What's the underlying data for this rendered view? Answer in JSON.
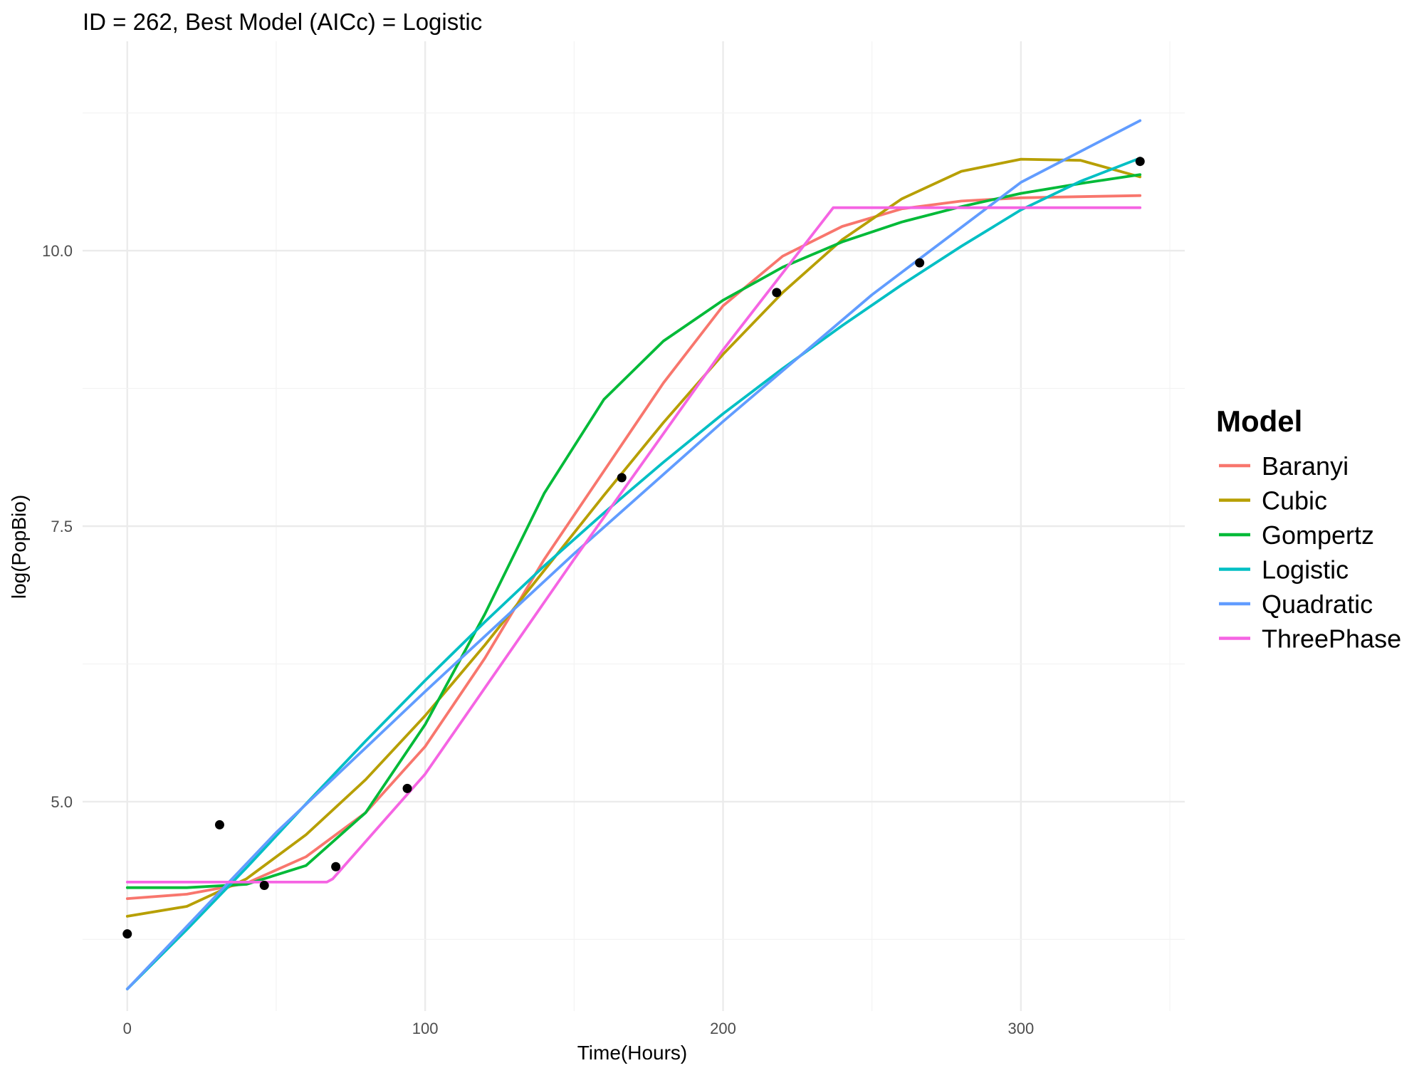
{
  "chart_data": {
    "type": "line",
    "title": "ID = 262, Best Model (AICc) = Logistic",
    "xlabel": "Time(Hours)",
    "ylabel": "log(PopBio)",
    "xlim": [
      -15,
      355
    ],
    "ylim": [
      3.1,
      11.9
    ],
    "x_ticks": [
      0,
      100,
      200,
      300
    ],
    "x_tick_labels": [
      "0",
      "100",
      "200",
      "300"
    ],
    "y_ticks": [
      5.0,
      7.5,
      10.0
    ],
    "y_tick_labels": [
      "5.0",
      "7.5",
      "10.0"
    ],
    "grid": true,
    "legend": {
      "title": "Model",
      "placement": "right"
    },
    "points": [
      {
        "x": 0,
        "y": 3.8
      },
      {
        "x": 31,
        "y": 4.79
      },
      {
        "x": 46,
        "y": 4.24
      },
      {
        "x": 70,
        "y": 4.41
      },
      {
        "x": 94,
        "y": 5.12
      },
      {
        "x": 166,
        "y": 7.94
      },
      {
        "x": 218,
        "y": 9.62
      },
      {
        "x": 266,
        "y": 9.89
      },
      {
        "x": 340,
        "y": 10.81
      }
    ],
    "series": [
      {
        "name": "Baranyi",
        "color": "#F8766D",
        "x": [
          0,
          20,
          40,
          60,
          80,
          100,
          120,
          140,
          160,
          180,
          200,
          220,
          240,
          260,
          280,
          300,
          320,
          340
        ],
        "values": [
          4.12,
          4.16,
          4.26,
          4.5,
          4.9,
          5.5,
          6.3,
          7.2,
          8.0,
          8.8,
          9.5,
          9.95,
          10.22,
          10.38,
          10.45,
          10.48,
          10.49,
          10.5
        ]
      },
      {
        "name": "Cubic",
        "color": "#B79F00",
        "x": [
          0,
          20,
          40,
          60,
          80,
          100,
          120,
          140,
          160,
          180,
          200,
          220,
          240,
          260,
          280,
          300,
          320,
          340
        ],
        "values": [
          3.96,
          4.05,
          4.3,
          4.7,
          5.2,
          5.78,
          6.42,
          7.1,
          7.78,
          8.44,
          9.06,
          9.62,
          10.1,
          10.47,
          10.72,
          10.83,
          10.82,
          10.67
        ]
      },
      {
        "name": "Gompertz",
        "color": "#00BA38",
        "x": [
          0,
          20,
          40,
          60,
          80,
          100,
          120,
          140,
          160,
          180,
          200,
          220,
          240,
          260,
          280,
          300,
          320,
          340
        ],
        "values": [
          4.22,
          4.22,
          4.25,
          4.42,
          4.9,
          5.7,
          6.7,
          7.8,
          8.65,
          9.18,
          9.55,
          9.85,
          10.08,
          10.26,
          10.4,
          10.52,
          10.61,
          10.69
        ]
      },
      {
        "name": "Logistic",
        "color": "#00BFC4",
        "x": [
          0,
          20,
          40,
          60,
          80,
          100,
          120,
          140,
          160,
          180,
          200,
          220,
          240,
          260,
          280,
          300,
          320,
          340
        ],
        "values": [
          3.3,
          3.84,
          4.4,
          4.98,
          5.55,
          6.1,
          6.63,
          7.14,
          7.62,
          8.08,
          8.52,
          8.93,
          9.32,
          9.69,
          10.04,
          10.37,
          10.63,
          10.84
        ]
      },
      {
        "name": "Quadratic",
        "color": "#619CFF",
        "x": [
          0,
          50,
          100,
          150,
          200,
          250,
          300,
          340
        ],
        "values": [
          3.3,
          4.72,
          6.0,
          7.25,
          8.45,
          9.6,
          10.62,
          11.18
        ]
      },
      {
        "name": "ThreePhase",
        "color": "#F564E3",
        "x": [
          0,
          67,
          69,
          100,
          150,
          200,
          237,
          239,
          340
        ],
        "values": [
          4.27,
          4.27,
          4.3,
          5.25,
          7.2,
          9.1,
          10.39,
          10.39,
          10.39
        ]
      }
    ]
  }
}
